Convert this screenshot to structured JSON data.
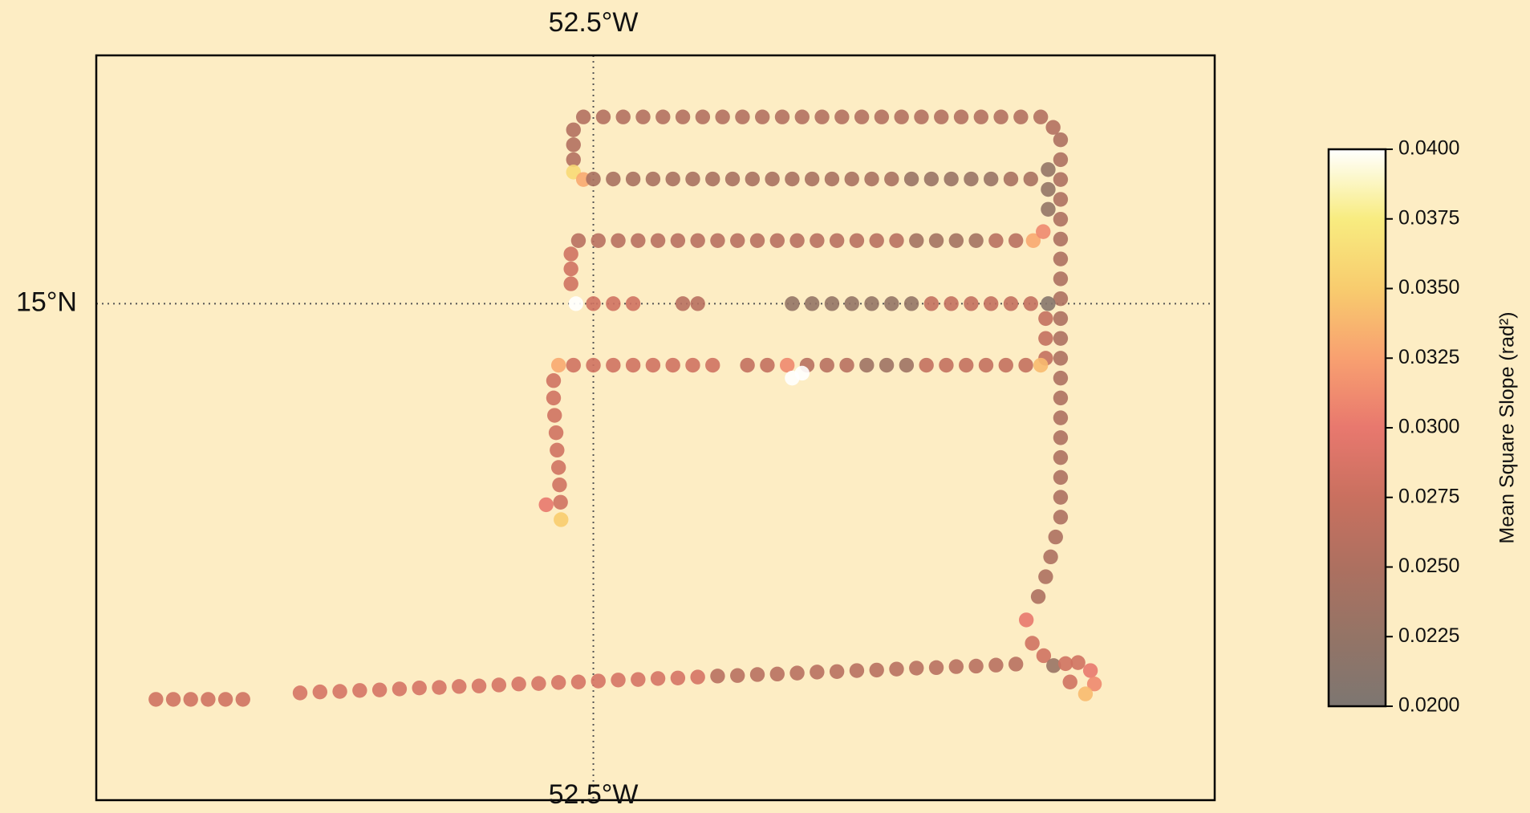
{
  "chart_data": {
    "type": "scatter",
    "xlim": [
      -53.5,
      -51.25
    ],
    "ylim": [
      14.0,
      15.5
    ],
    "xticks": [
      {
        "value": -52.5,
        "label": "52.5°W"
      }
    ],
    "yticks": [
      {
        "value": 15,
        "label": "15°N"
      }
    ],
    "grid": true,
    "clim": [
      0.02,
      0.04
    ],
    "cticks": [
      {
        "value": 0.04,
        "label": "0.0400"
      },
      {
        "value": 0.0375,
        "label": "0.0375"
      },
      {
        "value": 0.035,
        "label": "0.0350"
      },
      {
        "value": 0.0325,
        "label": "0.0325"
      },
      {
        "value": 0.03,
        "label": "0.0300"
      },
      {
        "value": 0.0275,
        "label": "0.0275"
      },
      {
        "value": 0.025,
        "label": "0.0250"
      },
      {
        "value": 0.0225,
        "label": "0.0225"
      },
      {
        "value": 0.02,
        "label": "0.0200"
      }
    ],
    "colorbar_label": "Mean Square Slope (rad²)",
    "colormap": [
      {
        "value": 0.02,
        "color": "#7d7671"
      },
      {
        "value": 0.0225,
        "color": "#947466"
      },
      {
        "value": 0.025,
        "color": "#ad7060"
      },
      {
        "value": 0.0275,
        "color": "#c9705f"
      },
      {
        "value": 0.03,
        "color": "#e8786e"
      },
      {
        "value": 0.0325,
        "color": "#f8a070"
      },
      {
        "value": 0.035,
        "color": "#f8cc6e"
      },
      {
        "value": 0.0375,
        "color": "#f8ec80"
      },
      {
        "value": 0.04,
        "color": "#ffffff"
      }
    ],
    "alpha": 0.9,
    "x": [
      -52.52,
      -52.48,
      -52.44,
      -52.4,
      -52.36,
      -52.32,
      -52.28,
      -52.24,
      -52.2,
      -52.16,
      -52.12,
      -52.08,
      -52.04,
      -52.0,
      -51.96,
      -51.92,
      -51.88,
      -51.84,
      -51.8,
      -51.76,
      -51.72,
      -51.68,
      -51.64,
      -51.6,
      -51.575,
      -52.54,
      -52.54,
      -52.54,
      -52.54,
      -52.52,
      -52.5,
      -52.46,
      -52.42,
      -52.38,
      -52.34,
      -52.3,
      -52.26,
      -52.22,
      -52.18,
      -52.14,
      -52.1,
      -52.06,
      -52.02,
      -51.98,
      -51.94,
      -51.9,
      -51.86,
      -51.82,
      -51.78,
      -51.74,
      -51.7,
      -51.66,
      -51.62,
      -51.56,
      -51.56,
      -51.56,
      -51.56,
      -51.56,
      -51.56,
      -51.56,
      -51.56,
      -51.56,
      -51.56,
      -51.56,
      -51.56,
      -51.56,
      -51.56,
      -51.56,
      -51.56,
      -51.56,
      -51.56,
      -51.56,
      -51.56,
      -51.57,
      -51.58,
      -51.59,
      -51.605,
      -51.585,
      -51.585,
      -51.585,
      -51.59,
      -51.59,
      -51.59,
      -52.53,
      -52.49,
      -52.45,
      -52.41,
      -52.37,
      -52.33,
      -52.29,
      -52.25,
      -52.21,
      -52.17,
      -52.13,
      -52.09,
      -52.05,
      -52.01,
      -51.97,
      -51.93,
      -51.89,
      -51.85,
      -51.81,
      -51.77,
      -51.73,
      -51.69,
      -51.65,
      -51.615,
      -51.595,
      -52.545,
      -52.545,
      -52.545,
      -52.535,
      -52.5,
      -52.46,
      -52.42,
      -52.32,
      -52.29,
      -52.1,
      -52.06,
      -52.02,
      -51.98,
      -51.94,
      -51.9,
      -51.86,
      -51.82,
      -51.78,
      -51.74,
      -51.7,
      -51.66,
      -51.62,
      -51.585,
      -52.57,
      -52.54,
      -52.5,
      -52.46,
      -52.42,
      -52.38,
      -52.34,
      -52.3,
      -52.26,
      -52.19,
      -52.15,
      -52.11,
      -52.07,
      -52.03,
      -51.99,
      -51.95,
      -51.91,
      -51.87,
      -51.83,
      -51.79,
      -51.75,
      -51.71,
      -51.67,
      -51.63,
      -51.6,
      -52.1,
      -52.08,
      -52.58,
      -52.58,
      -52.578,
      -52.575,
      -52.573,
      -52.57,
      -52.568,
      -52.566,
      -52.595,
      -52.565,
      -51.629,
      -51.617,
      -51.594,
      -51.574,
      -51.55,
      -51.525,
      -51.5,
      -51.492,
      -51.51,
      -51.541,
      -51.65,
      -51.69,
      -51.73,
      -51.77,
      -51.81,
      -51.85,
      -51.89,
      -51.93,
      -51.97,
      -52.01,
      -52.05,
      -52.09,
      -52.13,
      -52.17,
      -52.21,
      -52.25,
      -52.29,
      -52.33,
      -52.37,
      -52.41,
      -52.45,
      -52.49,
      -52.53,
      -52.57,
      -52.61,
      -52.65,
      -52.69,
      -52.73,
      -52.77,
      -52.81,
      -52.85,
      -52.89,
      -52.93,
      -52.97,
      -53.01,
      -53.05,
      -53.09,
      -53.38,
      -53.345,
      -53.31,
      -53.275,
      -53.24,
      -53.205
    ],
    "y": [
      15.376,
      15.376,
      15.376,
      15.376,
      15.376,
      15.376,
      15.376,
      15.376,
      15.376,
      15.376,
      15.376,
      15.376,
      15.376,
      15.376,
      15.376,
      15.376,
      15.376,
      15.376,
      15.376,
      15.376,
      15.376,
      15.376,
      15.376,
      15.376,
      15.355,
      15.35,
      15.32,
      15.29,
      15.265,
      15.25,
      15.251,
      15.251,
      15.251,
      15.251,
      15.251,
      15.251,
      15.251,
      15.251,
      15.251,
      15.251,
      15.251,
      15.251,
      15.251,
      15.251,
      15.251,
      15.251,
      15.251,
      15.251,
      15.251,
      15.251,
      15.251,
      15.251,
      15.251,
      15.33,
      15.29,
      15.25,
      15.21,
      15.17,
      15.13,
      15.09,
      15.05,
      15.01,
      14.97,
      14.93,
      14.89,
      14.85,
      14.81,
      14.77,
      14.73,
      14.69,
      14.65,
      14.61,
      14.57,
      14.53,
      14.49,
      14.45,
      14.41,
      15.27,
      15.23,
      15.19,
      14.97,
      14.93,
      14.89,
      15.127,
      15.127,
      15.127,
      15.127,
      15.127,
      15.127,
      15.127,
      15.127,
      15.127,
      15.127,
      15.127,
      15.127,
      15.127,
      15.127,
      15.127,
      15.127,
      15.127,
      15.127,
      15.127,
      15.127,
      15.127,
      15.127,
      15.127,
      15.127,
      15.145,
      15.1,
      15.07,
      15.04,
      15.0,
      15.0,
      15.0,
      15.0,
      15.0,
      15.0,
      15.0,
      15.0,
      15.0,
      15.0,
      15.0,
      15.0,
      15.0,
      15.0,
      15.0,
      15.0,
      15.0,
      15.0,
      15.0,
      15.0,
      14.876,
      14.876,
      14.876,
      14.876,
      14.876,
      14.876,
      14.876,
      14.876,
      14.876,
      14.876,
      14.876,
      14.876,
      14.876,
      14.876,
      14.876,
      14.876,
      14.876,
      14.876,
      14.876,
      14.876,
      14.876,
      14.876,
      14.876,
      14.876,
      14.876,
      14.85,
      14.86,
      14.845,
      14.81,
      14.775,
      14.74,
      14.705,
      14.67,
      14.635,
      14.6,
      14.595,
      14.565,
      14.363,
      14.316,
      14.291,
      14.271,
      14.275,
      14.277,
      14.261,
      14.234,
      14.214,
      14.238,
      14.274,
      14.272,
      14.27,
      14.269,
      14.267,
      14.266,
      14.264,
      14.262,
      14.261,
      14.259,
      14.258,
      14.256,
      14.254,
      14.253,
      14.251,
      14.25,
      14.248,
      14.246,
      14.245,
      14.243,
      14.242,
      14.24,
      14.238,
      14.237,
      14.235,
      14.234,
      14.232,
      14.23,
      14.229,
      14.227,
      14.226,
      14.224,
      14.222,
      14.221,
      14.219,
      14.218,
      14.216,
      14.203,
      14.203,
      14.203,
      14.203,
      14.203,
      14.203
    ],
    "values": [
      0.0255,
      0.0255,
      0.0255,
      0.0255,
      0.0255,
      0.0255,
      0.0255,
      0.0255,
      0.0255,
      0.0255,
      0.0255,
      0.0255,
      0.0255,
      0.0255,
      0.0255,
      0.0255,
      0.0255,
      0.0255,
      0.0255,
      0.0255,
      0.0255,
      0.0255,
      0.0255,
      0.0255,
      0.0255,
      0.0255,
      0.0255,
      0.0255,
      0.036,
      0.033,
      0.0245,
      0.0245,
      0.0245,
      0.0245,
      0.0245,
      0.0245,
      0.0245,
      0.0245,
      0.0245,
      0.0245,
      0.0245,
      0.0245,
      0.0245,
      0.0245,
      0.0245,
      0.0245,
      0.023,
      0.023,
      0.023,
      0.023,
      0.023,
      0.0245,
      0.0245,
      0.025,
      0.025,
      0.025,
      0.025,
      0.025,
      0.025,
      0.025,
      0.025,
      0.025,
      0.025,
      0.025,
      0.025,
      0.025,
      0.025,
      0.025,
      0.025,
      0.025,
      0.025,
      0.025,
      0.025,
      0.025,
      0.025,
      0.025,
      0.025,
      0.0225,
      0.0225,
      0.0225,
      0.027,
      0.027,
      0.027,
      0.026,
      0.026,
      0.026,
      0.026,
      0.026,
      0.026,
      0.026,
      0.026,
      0.026,
      0.026,
      0.026,
      0.026,
      0.026,
      0.026,
      0.026,
      0.026,
      0.026,
      0.024,
      0.024,
      0.024,
      0.024,
      0.026,
      0.026,
      0.033,
      0.031,
      0.028,
      0.028,
      0.028,
      0.04,
      0.028,
      0.028,
      0.028,
      0.026,
      0.026,
      0.0225,
      0.0225,
      0.0225,
      0.0225,
      0.0225,
      0.0225,
      0.0225,
      0.027,
      0.027,
      0.027,
      0.027,
      0.027,
      0.027,
      0.021,
      0.033,
      0.028,
      0.028,
      0.028,
      0.028,
      0.028,
      0.028,
      0.028,
      0.028,
      0.027,
      0.027,
      0.031,
      0.026,
      0.026,
      0.026,
      0.0235,
      0.0235,
      0.0235,
      0.027,
      0.027,
      0.027,
      0.027,
      0.027,
      0.027,
      0.034,
      0.04,
      0.04,
      0.028,
      0.028,
      0.028,
      0.028,
      0.028,
      0.028,
      0.028,
      0.028,
      0.03,
      0.035,
      0.03,
      0.028,
      0.028,
      0.023,
      0.028,
      0.028,
      0.03,
      0.031,
      0.034,
      0.028,
      0.026,
      0.026,
      0.026,
      0.026,
      0.026,
      0.026,
      0.026,
      0.026,
      0.026,
      0.026,
      0.026,
      0.026,
      0.026,
      0.026,
      0.026,
      0.026,
      0.0285,
      0.0285,
      0.0285,
      0.0285,
      0.0285,
      0.0285,
      0.0285,
      0.0285,
      0.0285,
      0.0285,
      0.0285,
      0.0285,
      0.0285,
      0.0285,
      0.0285,
      0.0285,
      0.0285,
      0.0285,
      0.0285,
      0.0285,
      0.0285,
      0.028,
      0.028,
      0.028,
      0.028,
      0.028,
      0.028
    ]
  }
}
